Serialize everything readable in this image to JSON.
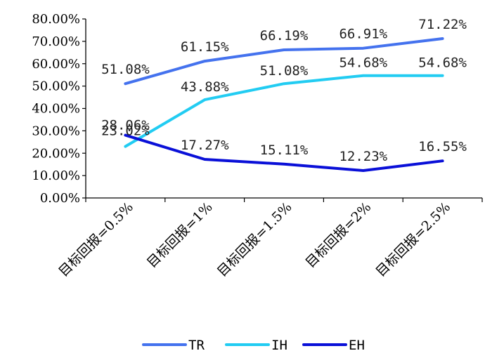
{
  "chart_data": {
    "type": "line",
    "categories": [
      "目标回报=0.5%",
      "目标回报=1%",
      "目标回报=1.5%",
      "目标回报=2%",
      "目标回报=2.5%"
    ],
    "series": [
      {
        "name": "TR",
        "values": [
          51.08,
          61.15,
          66.19,
          66.91,
          71.22
        ],
        "labels": [
          "51.08%",
          "61.15%",
          "66.19%",
          "66.91%",
          "71.22%"
        ],
        "color": "#4472EE"
      },
      {
        "name": "IH",
        "values": [
          23.02,
          43.88,
          51.08,
          54.68,
          54.68
        ],
        "labels": [
          "23.02%",
          "43.88%",
          "51.08%",
          "54.68%",
          "54.68%"
        ],
        "color": "#22CCF2"
      },
      {
        "name": "EH",
        "values": [
          28.06,
          17.27,
          15.11,
          12.23,
          16.55
        ],
        "labels": [
          "28.06%",
          "17.27%",
          "15.11%",
          "12.23%",
          "16.55%"
        ],
        "color": "#0A10D8"
      }
    ],
    "y_ticks": [
      "0.00%",
      "10.00%",
      "20.00%",
      "30.00%",
      "40.00%",
      "50.00%",
      "60.00%",
      "70.00%",
      "80.00%"
    ],
    "ylim": [
      0,
      80
    ],
    "title": "",
    "xlabel": "",
    "ylabel": "",
    "grid": false,
    "legend_position": "bottom"
  }
}
